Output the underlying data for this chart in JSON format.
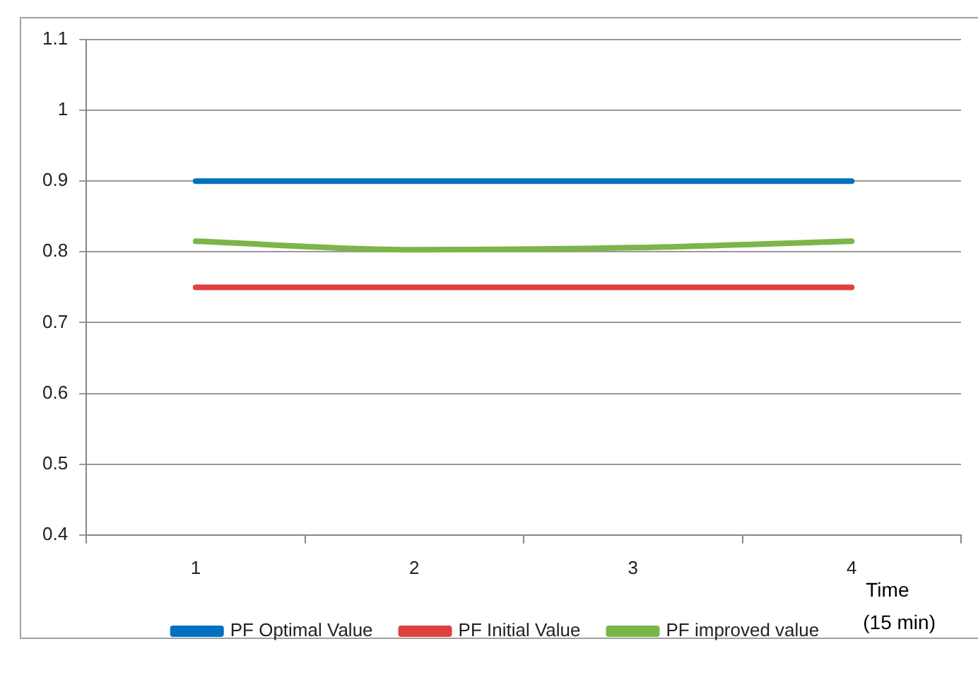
{
  "chart_data": {
    "type": "line",
    "xlabel": "Time (15 min)",
    "categories": [
      "1",
      "2",
      "3",
      "4"
    ],
    "series": [
      {
        "name": "PF Optimal Value",
        "color": "#0070c0",
        "values": [
          0.9,
          0.9,
          0.9,
          0.9
        ]
      },
      {
        "name": "PF Initial Value",
        "color": "#e04040",
        "values": [
          0.75,
          0.75,
          0.75,
          0.75
        ]
      },
      {
        "name": "PF improved value",
        "color": "#7ab648",
        "values": [
          0.815,
          0.803,
          0.806,
          0.815
        ]
      }
    ],
    "ylim": [
      0.4,
      1.1
    ],
    "yticks": [
      0.4,
      0.5,
      0.6,
      0.7,
      0.8,
      0.9,
      1,
      1.1
    ],
    "grid": "y",
    "legend": "bottom",
    "marker": "none",
    "line_style": "solid"
  }
}
